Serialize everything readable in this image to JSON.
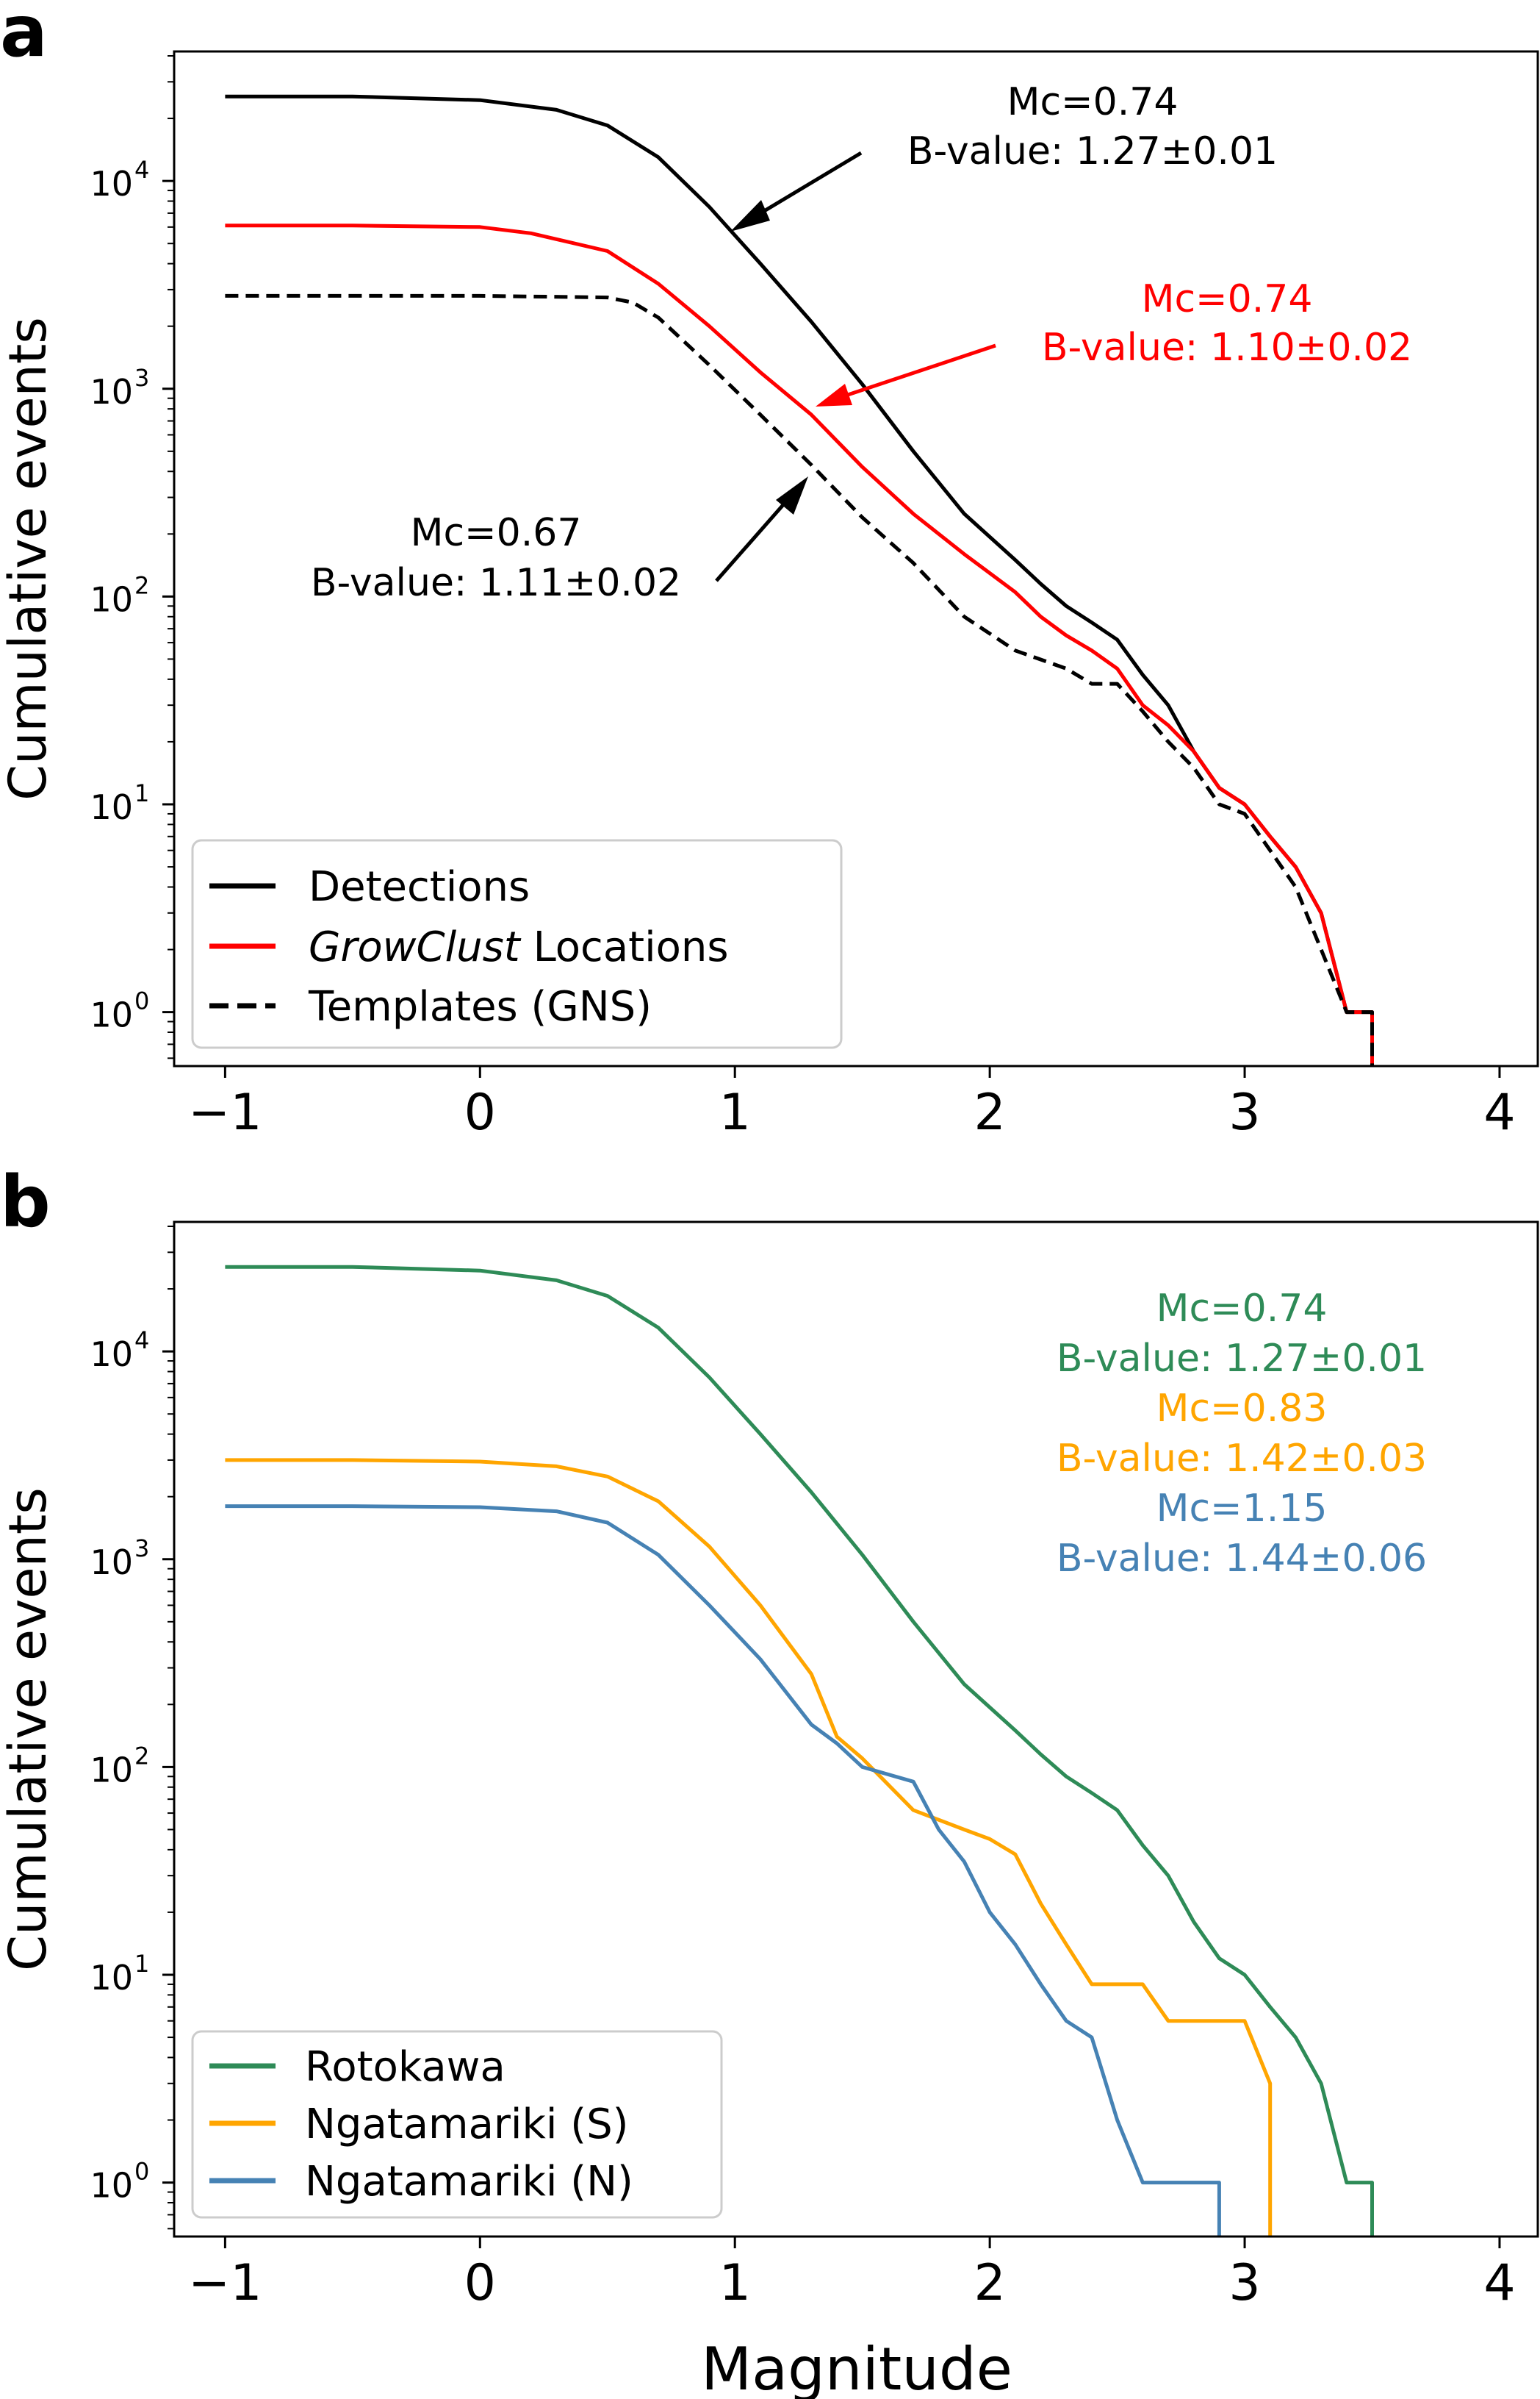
{
  "chart_data": [
    {
      "type": "line",
      "panel": "a",
      "ylabel": "Cumulative events",
      "xlabel": "",
      "yscale": "log",
      "xlim": [
        -1.2,
        4.15
      ],
      "ylim": [
        0.55,
        42000
      ],
      "xticks": [
        -1,
        0,
        1,
        2,
        3,
        4
      ],
      "xtick_labels": [
        "−1",
        "0",
        "1",
        "2",
        "3",
        "4"
      ],
      "yticks": [
        1,
        10,
        100,
        1000,
        10000
      ],
      "ytick_labels": [
        "10",
        "10",
        "10",
        "10",
        "10"
      ],
      "ytick_exponents": [
        "0",
        "1",
        "2",
        "3",
        "4"
      ],
      "legend_position": "lower-left",
      "series": [
        {
          "name": "Detections",
          "color": "#000000",
          "style": "solid",
          "x": [
            -1.0,
            -0.5,
            0.0,
            0.3,
            0.5,
            0.7,
            0.9,
            1.1,
            1.3,
            1.5,
            1.7,
            1.9,
            2.1,
            2.2,
            2.3,
            2.4,
            2.5,
            2.6,
            2.7,
            2.8,
            2.9,
            3.0,
            3.1,
            3.2,
            3.3,
            3.4,
            3.5,
            3.5
          ],
          "y": [
            25500,
            25500,
            24500,
            22000,
            18500,
            13000,
            7500,
            4000,
            2100,
            1050,
            500,
            250,
            150,
            115,
            90,
            75,
            62,
            42,
            30,
            18,
            12,
            10,
            7,
            5,
            3,
            1,
            1,
            0.55
          ]
        },
        {
          "name": "GrowClust Locations",
          "name_italic": "GrowClust",
          "name_rest": " Locations",
          "color": "#ff0000",
          "style": "solid",
          "x": [
            -1.0,
            -0.5,
            0.0,
            0.2,
            0.5,
            0.7,
            0.9,
            1.1,
            1.3,
            1.5,
            1.7,
            1.9,
            2.1,
            2.2,
            2.3,
            2.4,
            2.5,
            2.6,
            2.7,
            2.8,
            2.9,
            3.0,
            3.1,
            3.2,
            3.3,
            3.4,
            3.5,
            3.5
          ],
          "y": [
            6100,
            6100,
            6000,
            5600,
            4600,
            3200,
            2000,
            1200,
            750,
            420,
            250,
            160,
            105,
            80,
            65,
            55,
            45,
            30,
            24,
            18,
            12,
            10,
            7,
            5,
            3,
            1,
            1,
            0.55
          ]
        },
        {
          "name": "Templates (GNS)",
          "color": "#000000",
          "style": "dashed",
          "x": [
            -1.0,
            -0.5,
            0.0,
            0.5,
            0.6,
            0.7,
            0.9,
            1.1,
            1.3,
            1.5,
            1.7,
            1.9,
            2.1,
            2.3,
            2.4,
            2.5,
            2.6,
            2.7,
            2.8,
            2.9,
            3.0,
            3.1,
            3.2,
            3.3,
            3.4,
            3.5,
            3.5
          ],
          "y": [
            2800,
            2800,
            2800,
            2750,
            2600,
            2200,
            1300,
            750,
            430,
            240,
            145,
            80,
            55,
            45,
            38,
            38,
            28,
            20,
            15,
            10,
            9,
            6,
            4,
            2,
            1,
            1,
            0.55
          ]
        }
      ],
      "annotations": [
        {
          "lines": [
            "Mc=0.74",
            "B-value: 1.27±0.01"
          ],
          "color": "#000000",
          "arrow_to": [
            0.95,
            5500
          ]
        },
        {
          "lines": [
            "Mc=0.74",
            "B-value: 1.10±0.02"
          ],
          "color": "#ff0000",
          "arrow_to": [
            1.28,
            820
          ]
        },
        {
          "lines": [
            "Mc=0.67",
            "B-value: 1.11±0.02"
          ],
          "color": "#000000",
          "arrow_to": [
            1.35,
            400
          ]
        }
      ]
    },
    {
      "type": "line",
      "panel": "b",
      "ylabel": "Cumulative events",
      "xlabel": "Magnitude",
      "yscale": "log",
      "xlim": [
        -1.2,
        4.15
      ],
      "ylim": [
        0.55,
        42000
      ],
      "xticks": [
        -1,
        0,
        1,
        2,
        3,
        4
      ],
      "xtick_labels": [
        "−1",
        "0",
        "1",
        "2",
        "3",
        "4"
      ],
      "yticks": [
        1,
        10,
        100,
        1000,
        10000
      ],
      "ytick_labels": [
        "10",
        "10",
        "10",
        "10",
        "10"
      ],
      "ytick_exponents": [
        "0",
        "1",
        "2",
        "3",
        "4"
      ],
      "legend_position": "lower-left",
      "series": [
        {
          "name": "Rotokawa",
          "color": "#2e8b57",
          "style": "solid",
          "x": [
            -1.0,
            -0.5,
            0.0,
            0.3,
            0.5,
            0.7,
            0.9,
            1.1,
            1.3,
            1.5,
            1.7,
            1.9,
            2.1,
            2.2,
            2.3,
            2.4,
            2.5,
            2.6,
            2.7,
            2.8,
            2.9,
            3.0,
            3.1,
            3.2,
            3.3,
            3.4,
            3.5,
            3.5
          ],
          "y": [
            25500,
            25500,
            24500,
            22000,
            18500,
            13000,
            7500,
            4000,
            2100,
            1050,
            500,
            250,
            150,
            115,
            90,
            75,
            62,
            42,
            30,
            18,
            12,
            10,
            7,
            5,
            3,
            1,
            1,
            0.55
          ]
        },
        {
          "name": "Ngatamariki (S)",
          "color": "#ffa500",
          "style": "solid",
          "x": [
            -1.0,
            -0.5,
            0.0,
            0.3,
            0.5,
            0.7,
            0.9,
            1.1,
            1.3,
            1.4,
            1.5,
            1.7,
            1.9,
            2.0,
            2.1,
            2.2,
            2.3,
            2.4,
            2.5,
            2.6,
            2.7,
            2.8,
            2.9,
            3.0,
            3.1,
            3.1
          ],
          "y": [
            3000,
            3000,
            2950,
            2800,
            2500,
            1900,
            1150,
            600,
            280,
            140,
            110,
            62,
            50,
            45,
            38,
            22,
            14,
            9,
            9,
            9,
            6,
            6,
            6,
            6,
            3,
            0.55
          ]
        },
        {
          "name": "Ngatamariki (N)",
          "color": "#4682b4",
          "style": "solid",
          "x": [
            -1.0,
            -0.5,
            0.0,
            0.3,
            0.5,
            0.7,
            0.9,
            1.1,
            1.3,
            1.4,
            1.5,
            1.7,
            1.8,
            1.9,
            2.0,
            2.1,
            2.2,
            2.3,
            2.4,
            2.5,
            2.6,
            2.7,
            2.8,
            2.9,
            2.9
          ],
          "y": [
            1800,
            1800,
            1780,
            1700,
            1500,
            1050,
            600,
            330,
            160,
            130,
            100,
            85,
            50,
            35,
            20,
            14,
            9,
            6,
            5,
            2,
            1,
            1,
            1,
            1,
            0.55
          ]
        }
      ],
      "annotations": [
        {
          "lines": [
            "Mc=0.74",
            "B-value: 1.27±0.01"
          ],
          "color": "#2e8b57"
        },
        {
          "lines": [
            "Mc=0.83",
            "B-value: 1.42±0.03"
          ],
          "color": "#ffa500"
        },
        {
          "lines": [
            "Mc=1.15",
            "B-value: 1.44±0.06"
          ],
          "color": "#4682b4"
        }
      ]
    }
  ]
}
